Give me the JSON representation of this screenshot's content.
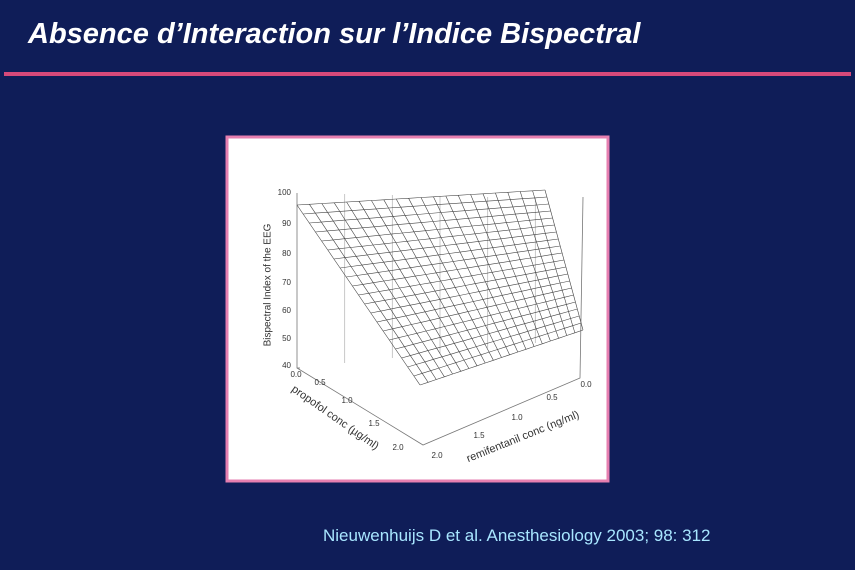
{
  "title": "Absence d’Interaction sur l’Indice Bispectral",
  "figure": {
    "z_axis_label": "Bispectral Index of the EEG",
    "z_ticks": [
      "100",
      "90",
      "80",
      "70",
      "60",
      "50",
      "40"
    ],
    "x_axis_label": "propofol conc (µg/ml)",
    "x_ticks": [
      "0.0",
      "0.5",
      "1.0",
      "1.5",
      "2.0"
    ],
    "y_axis_label": "remifentanil conc (ng/ml)",
    "y_ticks": [
      "0.0",
      "0.5",
      "1.0",
      "1.5",
      "2.0"
    ]
  },
  "citation": "Nieuwenhuijs D et al. Anesthesiology 2003; 98: 312"
}
